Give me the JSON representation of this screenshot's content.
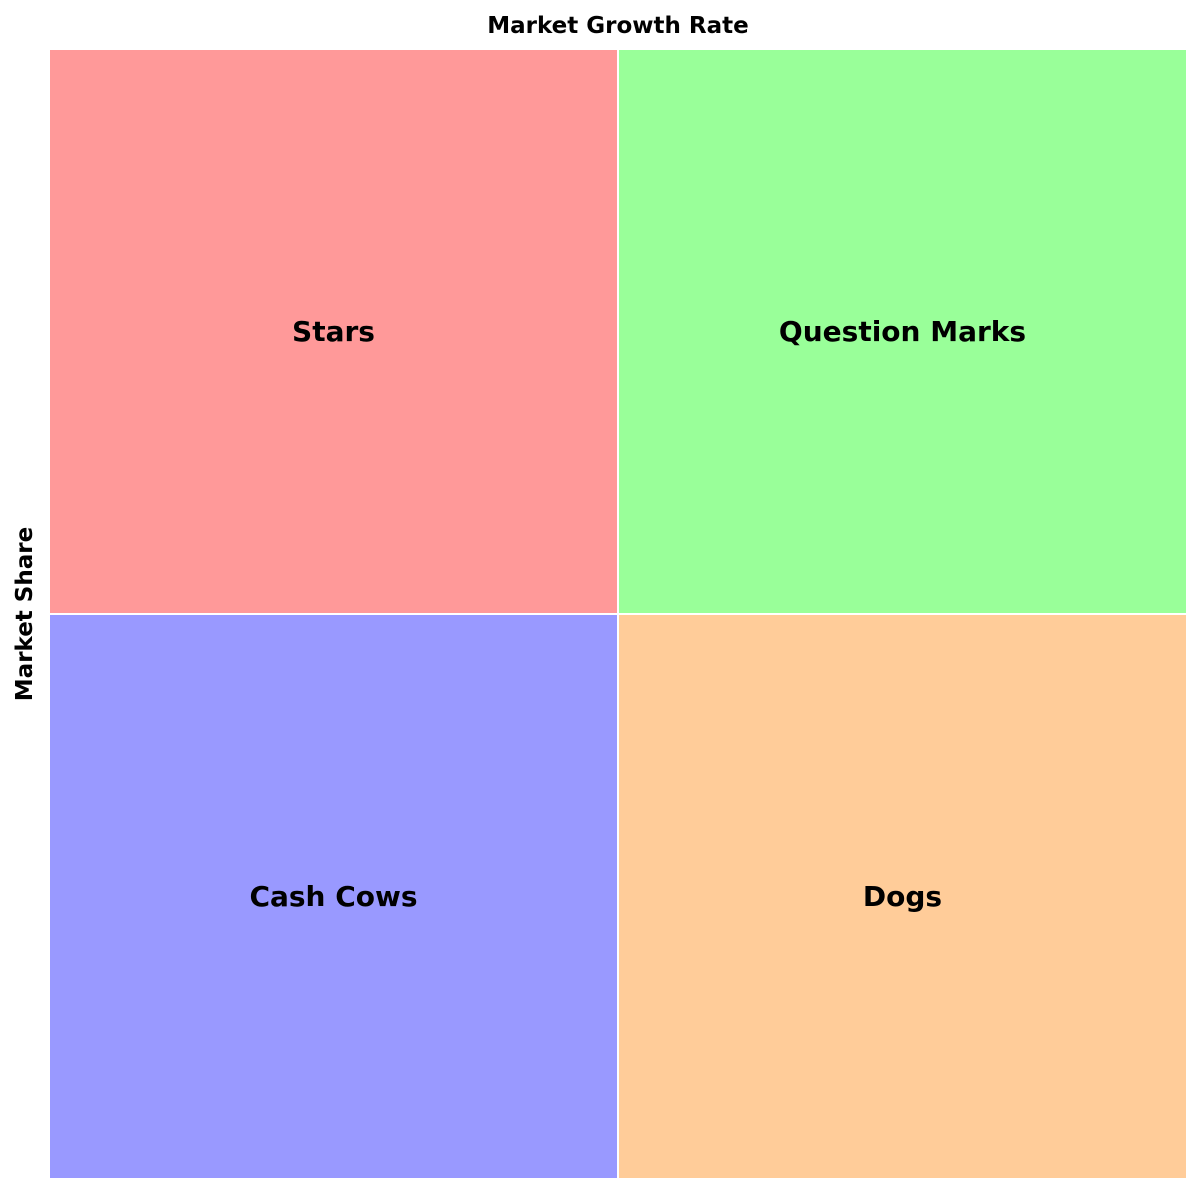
{
  "diagram": {
    "top_label": "Market Growth Rate",
    "side_label": "Market Share",
    "quadrants": [
      {
        "label": "Stars",
        "color": "#ff9999"
      },
      {
        "label": "Question Marks",
        "color": "#99ff99"
      },
      {
        "label": "Cash Cows",
        "color": "#9999ff"
      },
      {
        "label": "Dogs",
        "color": "#ffcc99"
      }
    ]
  }
}
